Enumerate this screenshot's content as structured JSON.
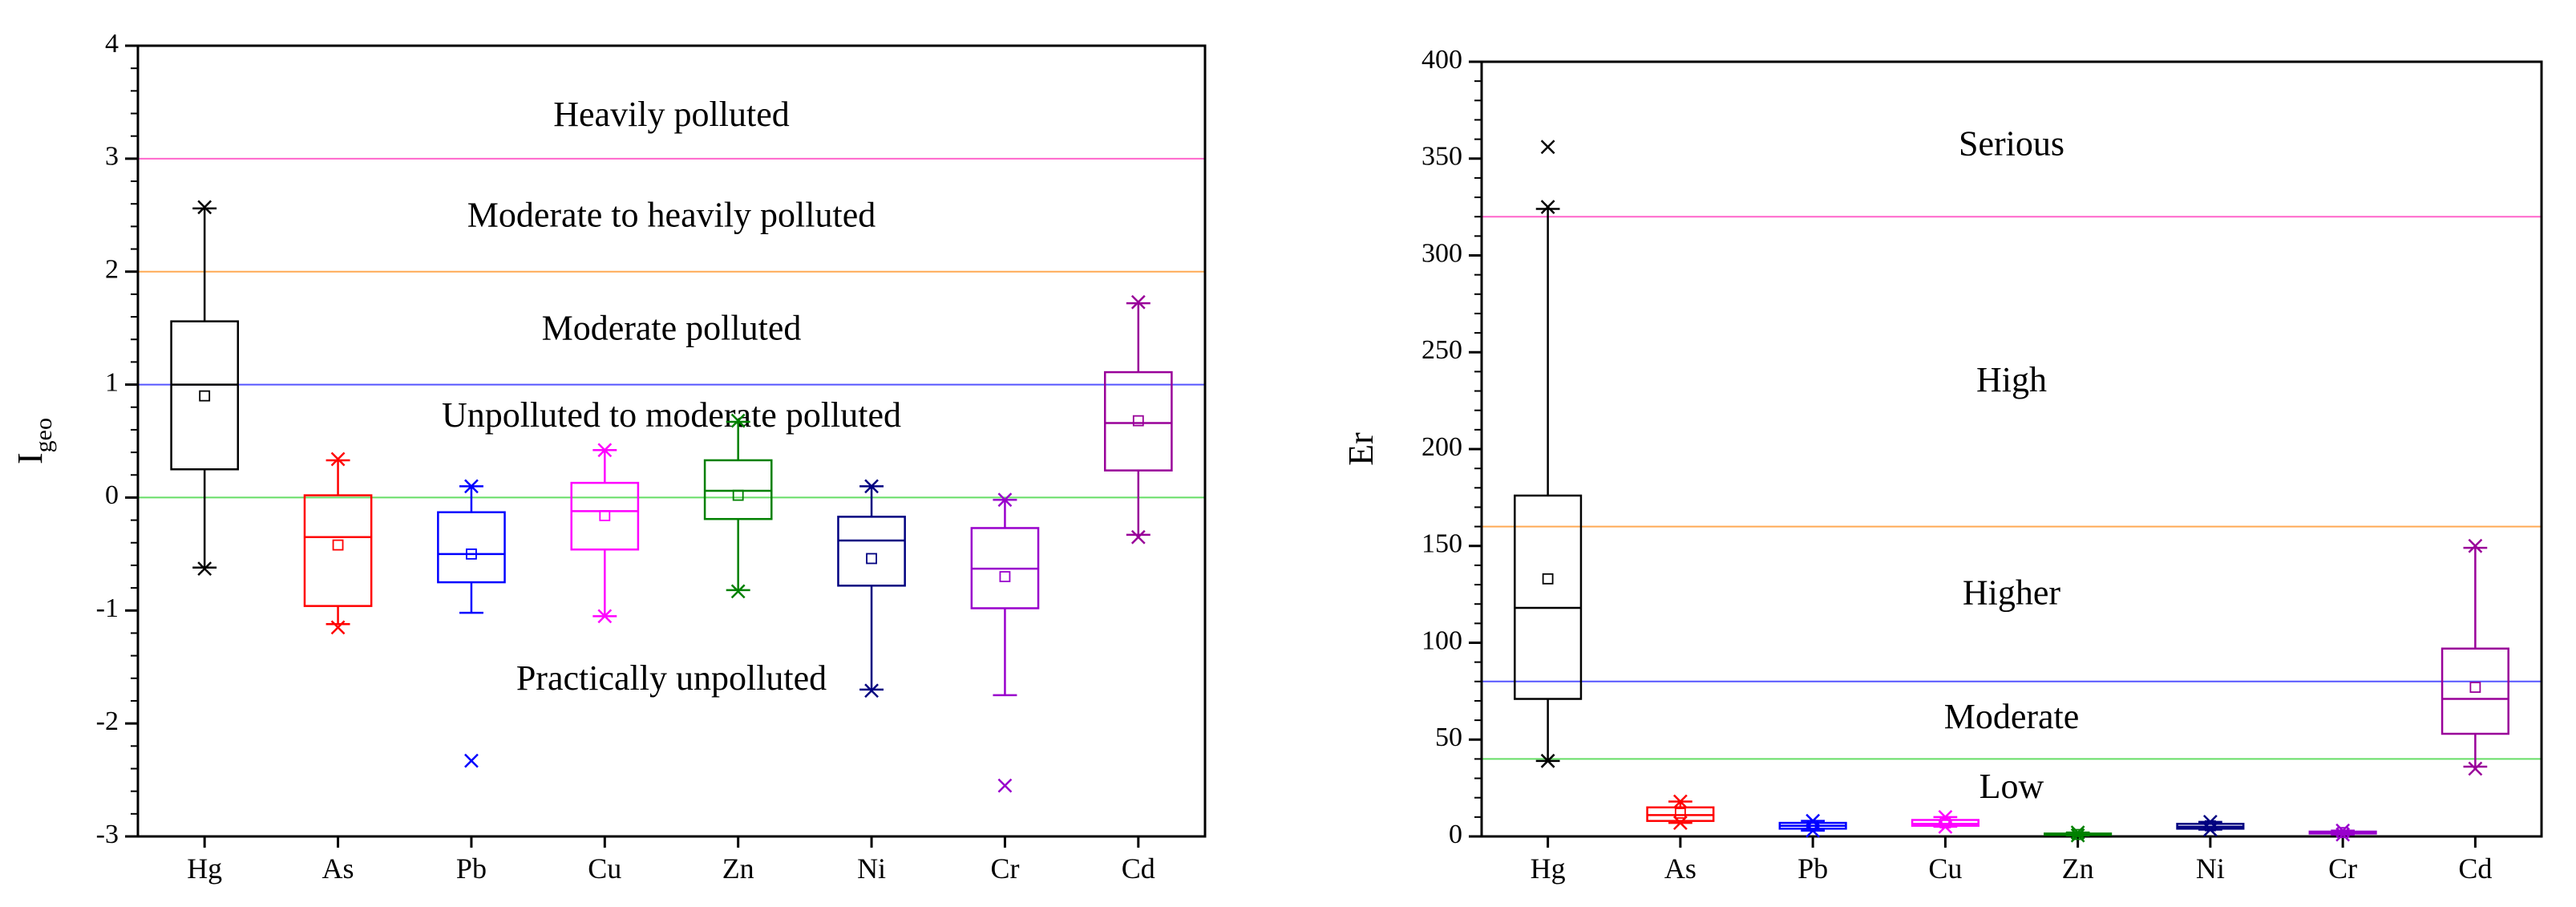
{
  "chart_data": [
    {
      "id": "igeo",
      "type": "box",
      "ylabel_main": "I",
      "ylabel_sub": "geo",
      "ylim": [
        -3,
        4
      ],
      "yticks": [
        -3,
        -2,
        -1,
        0,
        1,
        2,
        3,
        4
      ],
      "categories": [
        "Hg",
        "As",
        "Pb",
        "Cu",
        "Zn",
        "Ni",
        "Cr",
        "Cd"
      ],
      "colors": [
        "#000000",
        "#ff0000",
        "#0000ff",
        "#ff00ff",
        "#008000",
        "#000080",
        "#9900cc",
        "#990099"
      ],
      "boxes": [
        {
          "whisker_low": -0.62,
          "q1": 0.25,
          "median": 1.0,
          "q3": 1.56,
          "whisker_high": 2.56,
          "mean": 0.9,
          "extremes": [
            -0.63,
            2.57
          ],
          "outliers": []
        },
        {
          "whisker_low": -1.12,
          "q1": -0.96,
          "median": -0.35,
          "q3": 0.02,
          "whisker_high": 0.33,
          "mean": -0.42,
          "extremes": [
            -1.15,
            0.34
          ],
          "outliers": []
        },
        {
          "whisker_low": -1.02,
          "q1": -0.75,
          "median": -0.5,
          "q3": -0.13,
          "whisker_high": 0.1,
          "mean": -0.5,
          "extremes": [
            0.1
          ],
          "outliers": [
            -2.33
          ]
        },
        {
          "whisker_low": -1.05,
          "q1": -0.46,
          "median": -0.12,
          "q3": 0.13,
          "whisker_high": 0.42,
          "mean": -0.16,
          "extremes": [
            -1.05,
            0.42
          ],
          "outliers": []
        },
        {
          "whisker_low": -0.82,
          "q1": -0.19,
          "median": 0.06,
          "q3": 0.33,
          "whisker_high": 0.67,
          "mean": 0.02,
          "extremes": [
            -0.83,
            0.68
          ],
          "outliers": []
        },
        {
          "whisker_low": -1.7,
          "q1": -0.78,
          "median": -0.38,
          "q3": -0.17,
          "whisker_high": 0.1,
          "mean": -0.54,
          "extremes": [
            -1.71,
            0.1
          ],
          "outliers": []
        },
        {
          "whisker_low": -1.75,
          "q1": -0.98,
          "median": -0.63,
          "q3": -0.27,
          "whisker_high": -0.02,
          "mean": -0.7,
          "extremes": [
            -0.02
          ],
          "outliers": [
            -2.55
          ]
        },
        {
          "whisker_low": -0.33,
          "q1": 0.24,
          "median": 0.66,
          "q3": 1.11,
          "whisker_high": 1.72,
          "mean": 0.68,
          "extremes": [
            -0.35,
            1.73
          ],
          "outliers": []
        }
      ],
      "thresholds": [
        {
          "value": 3,
          "color": "#ff66cc"
        },
        {
          "value": 2,
          "color": "#ffaa55"
        },
        {
          "value": 1,
          "color": "#5555ff"
        },
        {
          "value": 0,
          "color": "#66dd66"
        }
      ],
      "zones": [
        {
          "label": "Heavily polluted",
          "y": 3.36
        },
        {
          "label": "Moderate to heavily polluted",
          "y": 2.47
        },
        {
          "label": "Moderate polluted",
          "y": 1.47
        },
        {
          "label": "Unpolluted to moderate polluted",
          "y": 0.7
        },
        {
          "label": "Practically unpolluted",
          "y": -1.63
        }
      ]
    },
    {
      "id": "er",
      "type": "box",
      "ylabel": "Er",
      "ylim": [
        0,
        400
      ],
      "yticks": [
        0,
        50,
        100,
        150,
        200,
        250,
        300,
        350,
        400
      ],
      "categories": [
        "Hg",
        "As",
        "Pb",
        "Cu",
        "Zn",
        "Ni",
        "Cr",
        "Cd"
      ],
      "colors": [
        "#000000",
        "#ff0000",
        "#0000ff",
        "#ff00ff",
        "#008000",
        "#000080",
        "#9900cc",
        "#990099"
      ],
      "boxes": [
        {
          "whisker_low": 39,
          "q1": 71,
          "median": 118,
          "q3": 176,
          "whisker_high": 324,
          "mean": 133,
          "extremes": [
            39,
            325
          ],
          "outliers": [
            356
          ]
        },
        {
          "whisker_low": 7,
          "q1": 8,
          "median": 11,
          "q3": 15,
          "whisker_high": 18,
          "mean": 12,
          "extremes": [
            7,
            18
          ],
          "outliers": []
        },
        {
          "whisker_low": 3,
          "q1": 4,
          "median": 5.5,
          "q3": 7,
          "whisker_high": 8,
          "mean": 5.5,
          "extremes": [
            3,
            8
          ],
          "outliers": []
        },
        {
          "whisker_low": 5,
          "q1": 5.5,
          "median": 6.5,
          "q3": 8.5,
          "whisker_high": 10,
          "mean": 7,
          "extremes": [
            5,
            10
          ],
          "outliers": []
        },
        {
          "whisker_low": 0.5,
          "q1": 0.8,
          "median": 1,
          "q3": 1.5,
          "whisker_high": 2,
          "mean": 1,
          "extremes": [
            0.5,
            2
          ],
          "outliers": []
        },
        {
          "whisker_low": 3.5,
          "q1": 4,
          "median": 5,
          "q3": 6.5,
          "whisker_high": 7.5,
          "mean": 5.5,
          "extremes": [
            3.5,
            7.5
          ],
          "outliers": []
        },
        {
          "whisker_low": 1,
          "q1": 1.5,
          "median": 2,
          "q3": 2.5,
          "whisker_high": 3,
          "mean": 2,
          "extremes": [
            1,
            3
          ],
          "outliers": []
        },
        {
          "whisker_low": 36,
          "q1": 53,
          "median": 71,
          "q3": 97,
          "whisker_high": 149,
          "mean": 77,
          "extremes": [
            35,
            150
          ],
          "outliers": []
        }
      ],
      "thresholds": [
        {
          "value": 320,
          "color": "#ff66cc"
        },
        {
          "value": 160,
          "color": "#ffaa55"
        },
        {
          "value": 80,
          "color": "#5555ff"
        },
        {
          "value": 40,
          "color": "#66dd66"
        }
      ],
      "zones": [
        {
          "label": "Serious",
          "y": 356
        },
        {
          "label": "High",
          "y": 234
        },
        {
          "label": "Higher",
          "y": 124
        },
        {
          "label": "Moderate",
          "y": 60
        },
        {
          "label": "Low",
          "y": 24
        }
      ]
    }
  ]
}
